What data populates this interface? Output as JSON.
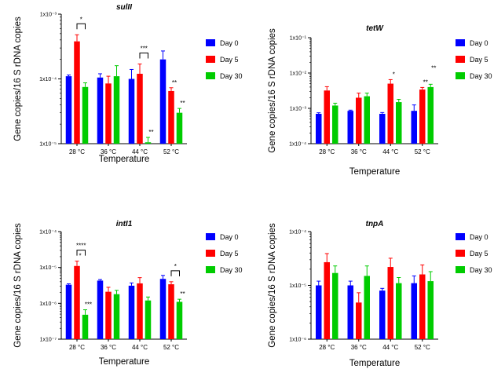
{
  "colors": {
    "day0": "#0000ff",
    "day5": "#ff0000",
    "day30": "#00cc00",
    "axis": "#000000"
  },
  "chart_data": [
    {
      "type": "bar",
      "title": "sulII",
      "ylabel": "Gene copies/16 S rDNA copies",
      "xlabel": "Temperature",
      "yscale": "log",
      "ylim": [
        1e-05,
        0.001
      ],
      "ytick_labels": [
        "1x10⁻³",
        "1x10⁻⁴",
        "1x10⁻⁵"
      ],
      "ytick_values": [
        0.001,
        0.0001,
        1e-05
      ],
      "categories": [
        "28 °C",
        "36 °C",
        "44 °C",
        "52 °C"
      ],
      "legend": [
        "Day 0",
        "Day 5",
        "Day 30"
      ],
      "series": [
        {
          "name": "Day 0",
          "values": [
            0.00011,
            0.000105,
            0.0001,
            0.0002
          ],
          "err": [
            5e-06,
            1.5e-05,
            4e-05,
            7e-05
          ]
        },
        {
          "name": "Day 5",
          "values": [
            0.00038,
            8.5e-05,
            0.00012,
            6.5e-05
          ],
          "err": [
            0.0001,
            2.5e-05,
            5e-05,
            8e-06
          ]
        },
        {
          "name": "Day 30",
          "values": [
            7.5e-05,
            0.00011,
            1.05e-05,
            3e-05
          ],
          "err": [
            1.2e-05,
            5e-05,
            2e-06,
            5e-06
          ]
        }
      ],
      "annotations": [
        {
          "cat": 0,
          "text": "*",
          "bracket": [
            1,
            2
          ]
        },
        {
          "cat": 2,
          "text": "***",
          "bracket": [
            1,
            2
          ]
        },
        {
          "cat": 2,
          "series": 2,
          "text": "**"
        },
        {
          "cat": 3,
          "series": 1,
          "text": "**"
        },
        {
          "cat": 3,
          "series": 2,
          "text": "**"
        }
      ]
    },
    {
      "type": "bar",
      "title": "tetW",
      "ylabel": "Gene copies/16 S rDNA copies",
      "xlabel": "Temperature",
      "yscale": "log",
      "ylim": [
        0.0001,
        0.1
      ],
      "ytick_labels": [
        "1x10⁻¹",
        "1x10⁻²",
        "1x10⁻³",
        "1x10⁻⁴"
      ],
      "ytick_values": [
        0.1,
        0.01,
        0.001,
        0.0001
      ],
      "categories": [
        "28 °C",
        "36 °C",
        "44 °C",
        "52 °C"
      ],
      "legend": [
        "Day 0",
        "Day 5",
        "Day 30"
      ],
      "series": [
        {
          "name": "Day 0",
          "values": [
            0.0007,
            0.00085,
            0.0007,
            0.00085
          ],
          "err": [
            5e-05,
            4e-05,
            6e-05,
            0.0004
          ]
        },
        {
          "name": "Day 5",
          "values": [
            0.0032,
            0.002,
            0.005,
            0.0034
          ],
          "err": [
            0.0009,
            0.0007,
            0.0015,
            0.0005
          ]
        },
        {
          "name": "Day 30",
          "values": [
            0.0012,
            0.0022,
            0.0015,
            0.004
          ],
          "err": [
            0.0002,
            0.0005,
            0.0003,
            0.0008
          ]
        }
      ],
      "annotations": [
        {
          "cat": 2,
          "series": 1,
          "text": "*"
        },
        {
          "cat": 3,
          "series": 1,
          "text": "**"
        },
        {
          "cat": 3,
          "series": 2,
          "text": "**",
          "raise": true
        }
      ]
    },
    {
      "type": "bar",
      "title": "intI1",
      "ylabel": "Gene copies/16 S rDNA copies",
      "xlabel": "Temperature",
      "yscale": "log",
      "ylim": [
        1e-07,
        0.0001
      ],
      "ytick_labels": [
        "1x10⁻⁴",
        "1x10⁻⁵",
        "1x10⁻⁶",
        "1x10⁻⁷"
      ],
      "ytick_values": [
        0.0001,
        1e-05,
        1e-06,
        1e-07
      ],
      "categories": [
        "28 °C",
        "36 °C",
        "44 °C",
        "52 °C"
      ],
      "legend": [
        "Day 0",
        "Day 5",
        "Day 30"
      ],
      "series": [
        {
          "name": "Day 0",
          "values": [
            3.3e-06,
            4.3e-06,
            3.1e-06,
            4.8e-06
          ],
          "err": [
            2e-07,
            3e-07,
            6e-07,
            1.2e-06
          ]
        },
        {
          "name": "Day 5",
          "values": [
            1.1e-05,
            2.1e-06,
            3.6e-06,
            3.4e-06
          ],
          "err": [
            4e-06,
            7e-07,
            1.6e-06,
            6e-07
          ]
        },
        {
          "name": "Day 30",
          "values": [
            4.8e-07,
            1.8e-06,
            1.2e-06,
            1.1e-06
          ],
          "err": [
            1.8e-07,
            5e-07,
            3e-07,
            2e-07
          ]
        }
      ],
      "annotations": [
        {
          "cat": 0,
          "text": "****",
          "bracket": [
            1,
            2
          ]
        },
        {
          "cat": 0,
          "series": 1,
          "text": "*"
        },
        {
          "cat": 0,
          "series": 2,
          "text": "***"
        },
        {
          "cat": 3,
          "text": "*",
          "bracket": [
            1,
            2
          ]
        },
        {
          "cat": 3,
          "series": 2,
          "text": "**"
        }
      ]
    },
    {
      "type": "bar",
      "title": "tnpA",
      "ylabel": "Gene copies/16 S rDNA copies",
      "xlabel": "Temperature",
      "yscale": "log",
      "ylim": [
        1e-06,
        0.0001
      ],
      "ytick_labels": [
        "1x10⁻⁴",
        "1x10⁻⁵",
        "1x10⁻⁶"
      ],
      "ytick_values": [
        0.0001,
        1e-05,
        1e-06
      ],
      "categories": [
        "28 °C",
        "36 °C",
        "44 °C",
        "52 °C"
      ],
      "legend": [
        "Day 0",
        "Day 5",
        "Day 30"
      ],
      "series": [
        {
          "name": "Day 0",
          "values": [
            1e-05,
            1e-05,
            8e-06,
            1.1e-05
          ],
          "err": [
            2e-06,
            2e-06,
            8e-07,
            4e-06
          ]
        },
        {
          "name": "Day 5",
          "values": [
            2.7e-05,
            4.8e-06,
            2.2e-05,
            1.6e-05
          ],
          "err": [
            1.2e-05,
            2.5e-06,
            1e-05,
            8e-06
          ]
        },
        {
          "name": "Day 30",
          "values": [
            1.7e-05,
            1.5e-05,
            1.1e-05,
            1.2e-05
          ],
          "err": [
            6e-06,
            8e-06,
            3e-06,
            6e-06
          ]
        }
      ],
      "annotations": []
    }
  ]
}
